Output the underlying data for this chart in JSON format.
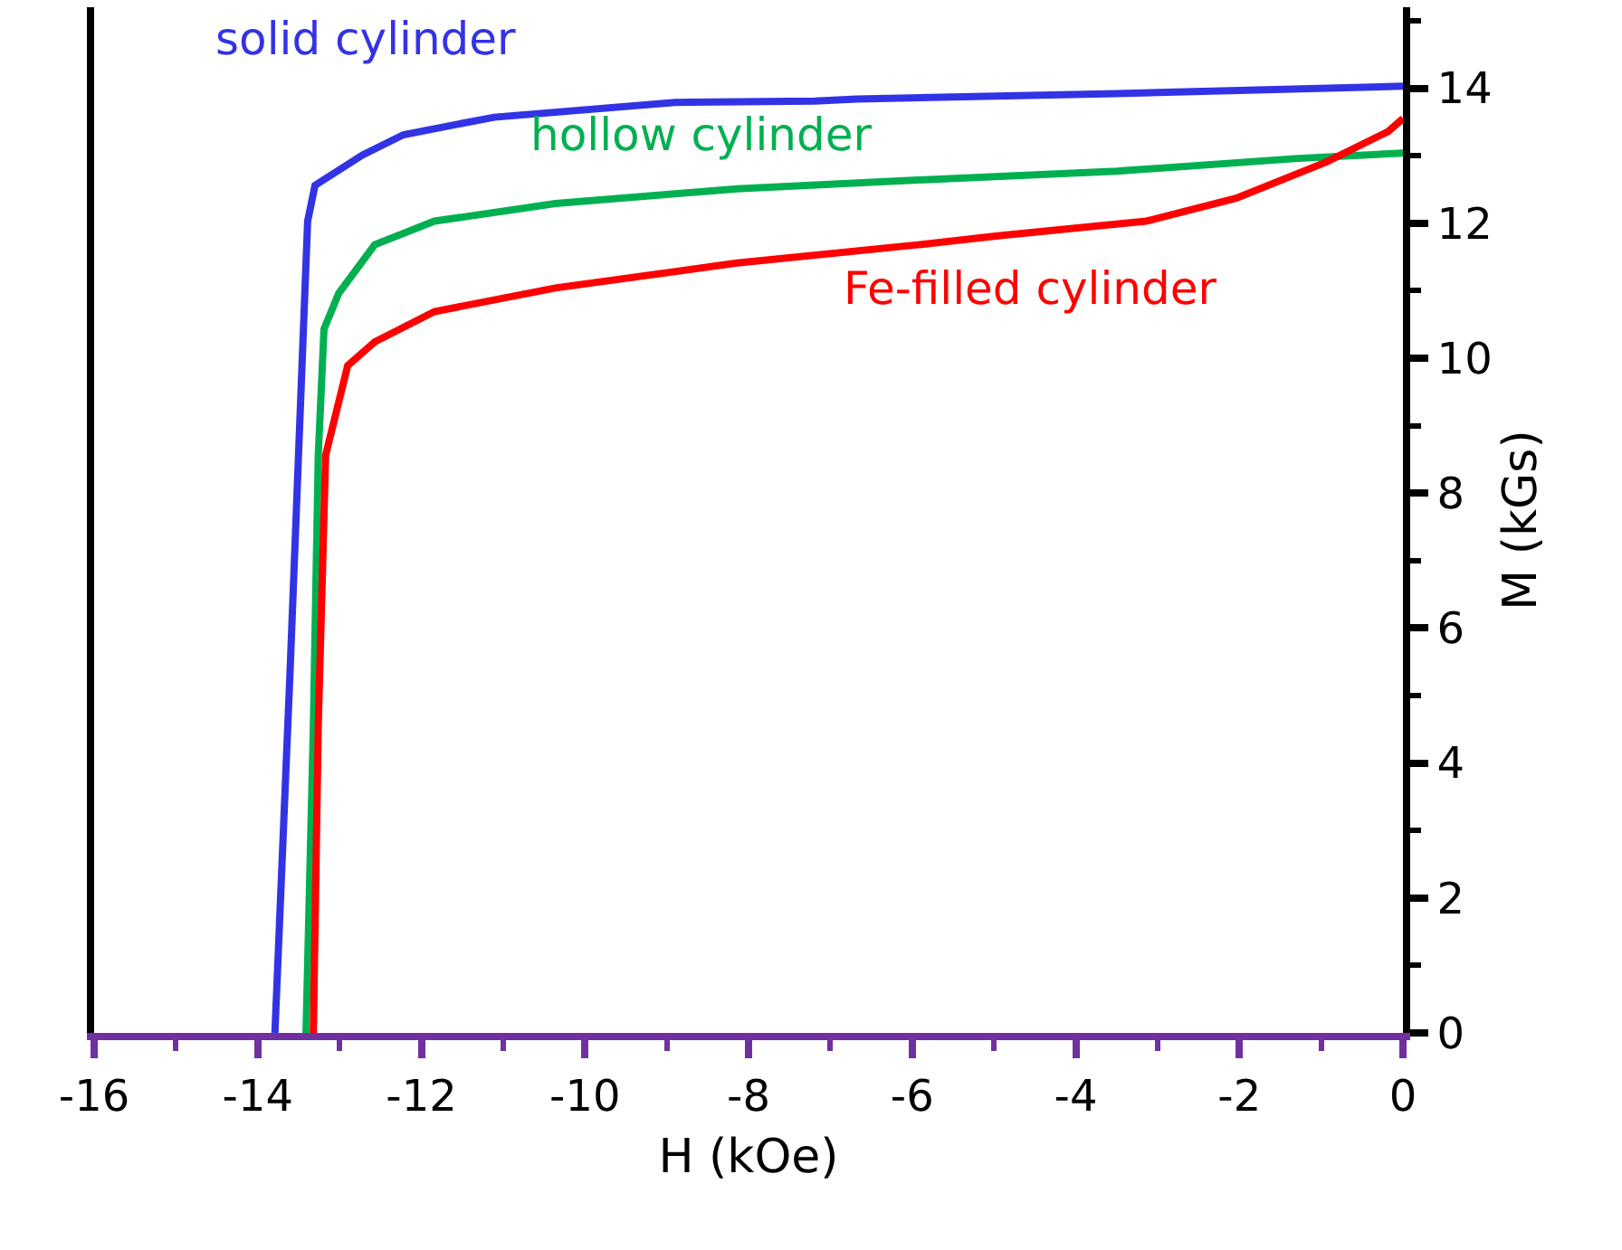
{
  "chart_data": {
    "type": "line",
    "xlabel": "H (kOe)",
    "ylabel": "M (kGs)",
    "xlim": [
      -16,
      0
    ],
    "xticks": [
      -16,
      -14,
      -12,
      -10,
      -8,
      -6,
      -4,
      -2,
      0
    ],
    "ylim": [
      0,
      15.2
    ],
    "yticks": [
      0,
      2,
      4,
      6,
      8,
      10,
      12,
      14
    ],
    "legend": false,
    "marker": "none",
    "line_style": "solid",
    "series": [
      {
        "name": "solid cylinder",
        "color": "#3333e6",
        "x": [
          -13.79,
          -13.6,
          -13.39,
          -13.3,
          -12.72,
          -12.22,
          -11.11,
          -8.9,
          -7.19,
          -6.68,
          -3.5,
          0
        ],
        "values": [
          0,
          5.5,
          12.03,
          12.56,
          13.01,
          13.31,
          13.57,
          13.79,
          13.81,
          13.84,
          13.92,
          14.03
        ]
      },
      {
        "name": "hollow cylinder",
        "color": "#00b050",
        "x": [
          -13.41,
          -13.32,
          -13.26,
          -13.19,
          -13.01,
          -12.57,
          -11.84,
          -10.36,
          -8.14,
          -5.93,
          -3.5,
          -1.28,
          0
        ],
        "values": [
          0,
          4.56,
          8.56,
          10.43,
          10.96,
          11.68,
          12.03,
          12.29,
          12.51,
          12.64,
          12.77,
          12.96,
          13.04
        ]
      },
      {
        "name": "Fe-filled cylinder",
        "color": "#ff0000",
        "x": [
          -13.32,
          -13.26,
          -13.17,
          -12.9,
          -12.57,
          -11.84,
          -10.36,
          -8.14,
          -5.93,
          -4.98,
          -3.14,
          -2.04,
          -0.93,
          -0.18,
          0
        ],
        "values": [
          0,
          4.56,
          8.56,
          9.89,
          10.24,
          10.69,
          11.04,
          11.41,
          11.68,
          11.81,
          12.03,
          12.37,
          12.91,
          13.36,
          13.55
        ]
      }
    ]
  }
}
